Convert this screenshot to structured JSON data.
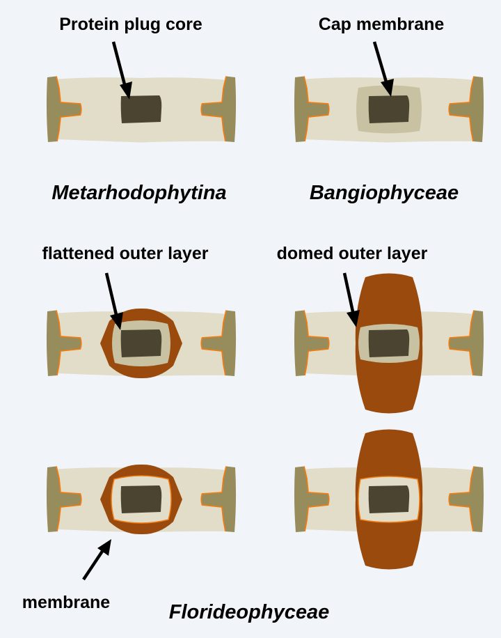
{
  "labels": {
    "protein_plug_core": "Protein plug core",
    "cap_membrane": "Cap membrane",
    "flattened_outer_layer": "flattened outer layer",
    "domed_outer_layer": "domed outer layer",
    "membrane": "membrane"
  },
  "taxa": {
    "metarhodophytina": "Metarhodophytina",
    "bangiophyceae": "Bangiophyceae",
    "florideophyceae": "Florideophyceae"
  },
  "colors": {
    "background": "#f1f4f9",
    "cytoplasm": "#e2ddc8",
    "cell_wall": "#978c5c",
    "plasma_membrane": "#f07c14",
    "plug_core": "#4a4430",
    "cap_membrane": "#c9c2a2",
    "outer_layer": "#9a4a0c"
  }
}
